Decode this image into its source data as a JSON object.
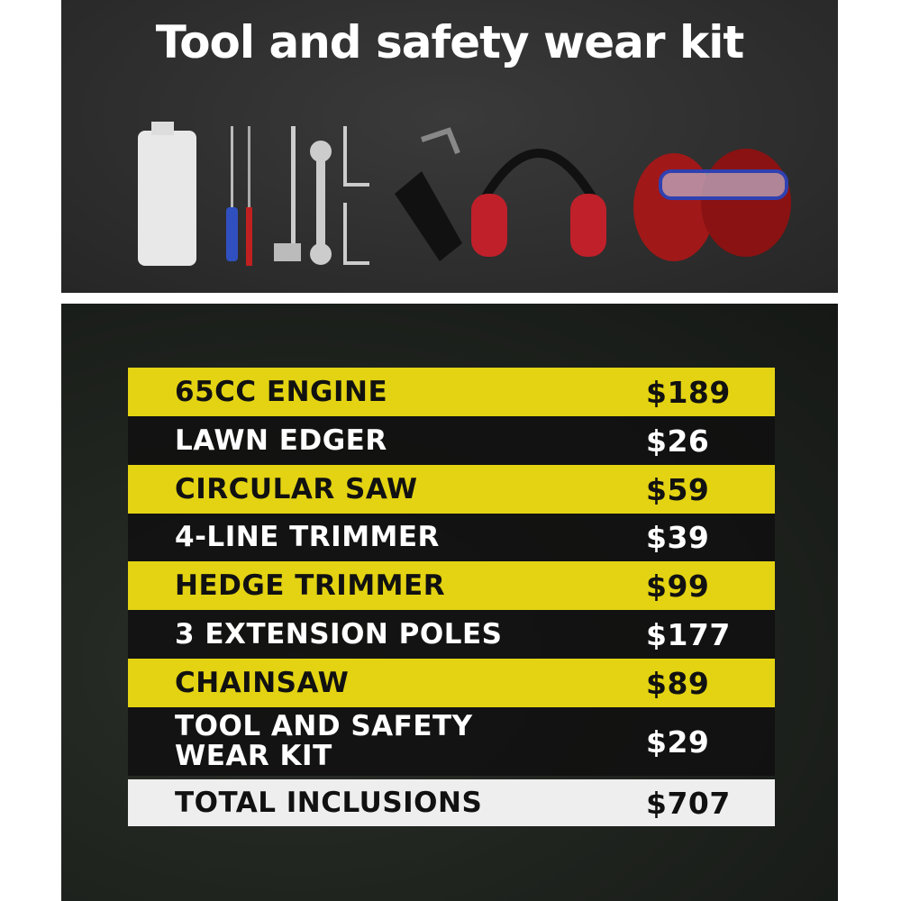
{
  "title": "Tool and safety wear kit",
  "tools": [
    "oil-bottle",
    "screwdriver",
    "file",
    "spark-plug-wrench",
    "wrench",
    "hex-keys",
    "harness-strap",
    "earmuffs",
    "safety-glasses",
    "gloves"
  ],
  "colors": {
    "yellow": "#e3d312",
    "dark": "#111111",
    "total": "#eeeeee"
  },
  "rows": [
    {
      "label": "65CC ENGINE",
      "price": "$189"
    },
    {
      "label": "LAWN EDGER",
      "price": "$26"
    },
    {
      "label": "CIRCULAR SAW",
      "price": "$59"
    },
    {
      "label": "4-LINE TRIMMER",
      "price": "$39"
    },
    {
      "label": "HEDGE TRIMMER",
      "price": "$99"
    },
    {
      "label": "3 EXTENSION POLES",
      "price": "$177"
    },
    {
      "label": "CHAINSAW",
      "price": "$89"
    },
    {
      "label": "TOOL AND SAFETY WEAR KIT",
      "price": "$29"
    }
  ],
  "total": {
    "label": "TOTAL INCLUSIONS",
    "price": "$707"
  }
}
